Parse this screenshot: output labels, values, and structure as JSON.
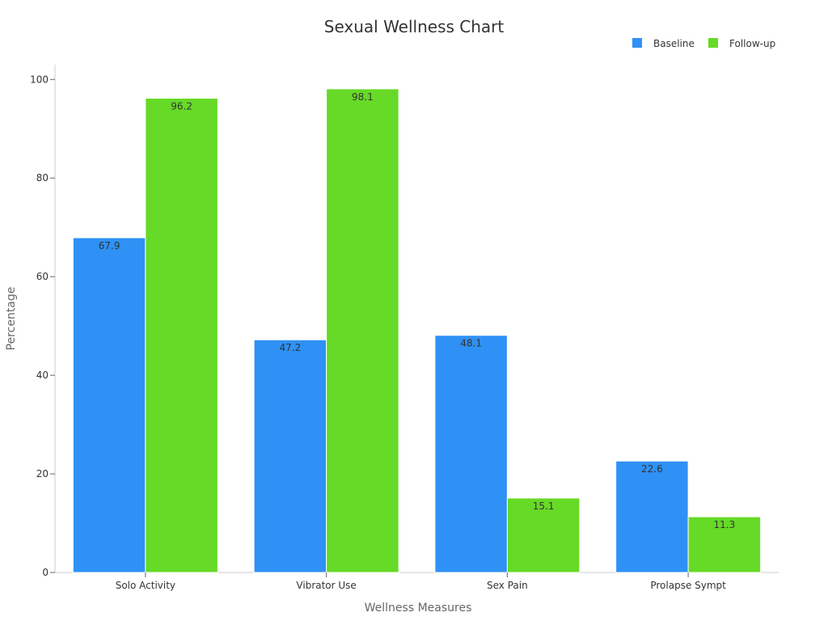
{
  "chart_data": {
    "type": "bar",
    "title": "Sexual Wellness Chart",
    "xlabel": "Wellness Measures",
    "ylabel": "Percentage",
    "categories": [
      "Solo Activity",
      "Vibrator Use",
      "Sex Pain",
      "Prolapse Sympt"
    ],
    "series": [
      {
        "name": "Baseline",
        "color": "#2f91f5",
        "values": [
          67.9,
          47.2,
          48.1,
          22.6
        ]
      },
      {
        "name": "Follow-up",
        "color": "#66da26",
        "values": [
          96.2,
          98.1,
          15.1,
          11.3
        ]
      }
    ],
    "ylim": [
      0,
      103
    ],
    "yticks": [
      0,
      20,
      40,
      60,
      80,
      100
    ],
    "grid": false,
    "legend_position": "top-right",
    "data_labels": true
  }
}
